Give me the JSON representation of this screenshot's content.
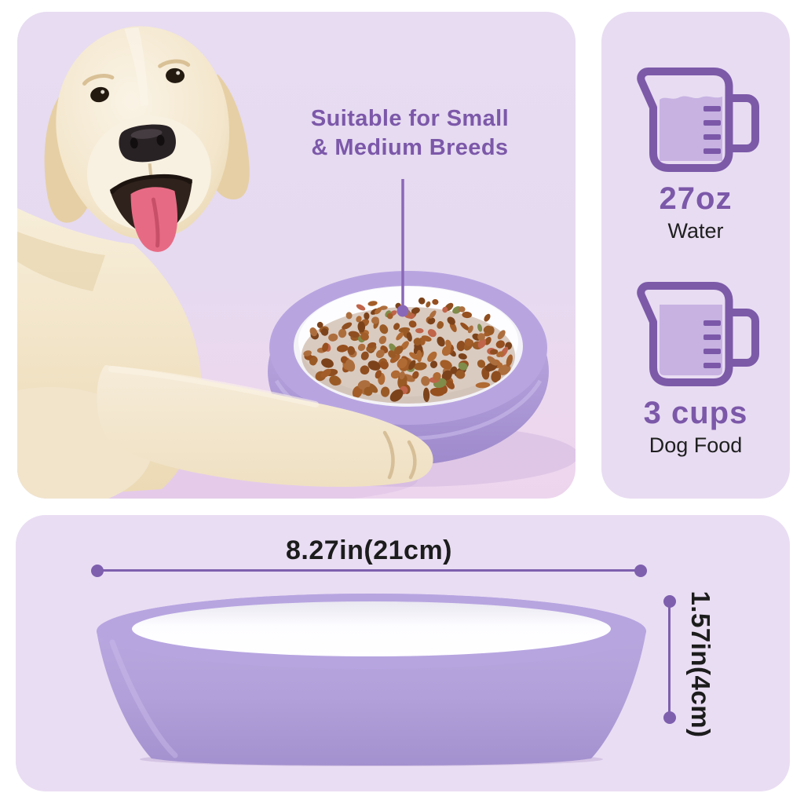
{
  "hero": {
    "headline_line1": "Suitable for Small",
    "headline_line2": "& Medium Breeds",
    "image": "golden-retriever-with-purple-bowl-of-kibble"
  },
  "capacity": {
    "water": {
      "amount": "27oz",
      "label": "Water",
      "icon": "measuring-cup-water-icon"
    },
    "food": {
      "amount": "3 cups",
      "label": "Dog Food",
      "icon": "measuring-cup-food-icon"
    }
  },
  "dimensions": {
    "width": "8.27in(21cm)",
    "height": "1.57in(4cm)"
  },
  "colors": {
    "accent_purple": "#7c58a9",
    "dimension_line_purple": "#7e5fae",
    "panel_background": "#e8dcf2",
    "page_background": "#ffffff",
    "bowl_purple": "#b3a0dc",
    "cup_fill_purple": "#c7b2e2",
    "text_dark": "#1c1c1c",
    "kibble_brown": "#9a5a26"
  }
}
